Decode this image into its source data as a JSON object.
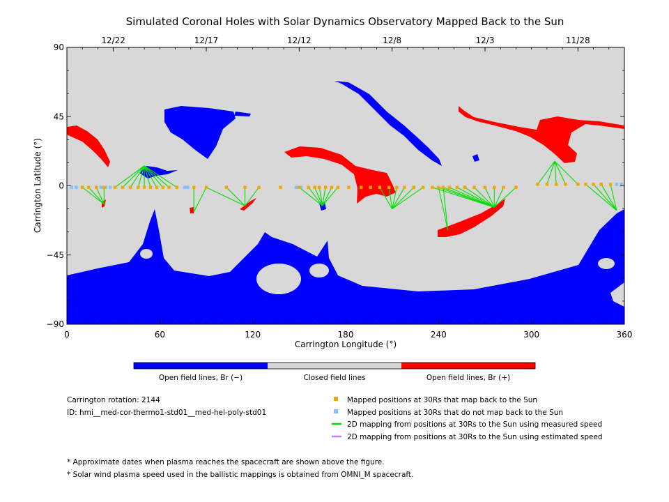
{
  "chart_data": {
    "type": "map",
    "title": "Simulated Coronal Holes with Solar Dynamics Observatory Mapped Back to the Sun",
    "xlabel": "Carrington Longitude (°)",
    "ylabel": "Carrington Latitude (°)",
    "xlim": [
      0,
      360
    ],
    "ylim": [
      -90,
      90
    ],
    "x_ticks": [
      0,
      60,
      120,
      180,
      240,
      300,
      360
    ],
    "y_ticks": [
      90,
      45,
      0,
      -45,
      -90
    ],
    "y_tick_labels": [
      "90",
      "45",
      "0",
      "−45",
      "−90"
    ],
    "top_dates": [
      {
        "lon": 30,
        "label": "12/22"
      },
      {
        "lon": 90,
        "label": "12/17"
      },
      {
        "lon": 150,
        "label": "12/12"
      },
      {
        "lon": 210,
        "label": "12/8"
      },
      {
        "lon": 270,
        "label": "12/3"
      },
      {
        "lon": 330,
        "label": "11/28"
      }
    ],
    "colors": {
      "open_negative": "#0000ff",
      "closed": "#d8d8d8",
      "open_positive": "#ff0000",
      "mapped": "#f0a800",
      "not_mapped": "#80c0ff",
      "measured_speed": "#00dd00",
      "estimated_speed": "#c080ff"
    },
    "colorbar_labels": [
      "Open field lines, Br (−)",
      "Closed field lines",
      "Open field lines, Br (+)"
    ],
    "mapped_points": [
      [
        10,
        -1
      ],
      [
        14,
        -1
      ],
      [
        19,
        -1
      ],
      [
        24,
        -1
      ],
      [
        31,
        -1
      ],
      [
        36,
        -1
      ],
      [
        41,
        -1
      ],
      [
        46,
        -1
      ],
      [
        50,
        -1
      ],
      [
        54,
        -1
      ],
      [
        58,
        -1
      ],
      [
        62,
        -1
      ],
      [
        66,
        -1
      ],
      [
        71,
        -1
      ],
      [
        82,
        -1
      ],
      [
        90,
        -1
      ],
      [
        103,
        -1
      ],
      [
        115,
        -1
      ],
      [
        124,
        -1
      ],
      [
        138,
        -1
      ],
      [
        150,
        -1
      ],
      [
        156,
        -1
      ],
      [
        160,
        -1
      ],
      [
        163,
        -1
      ],
      [
        167,
        -1
      ],
      [
        171,
        -1
      ],
      [
        175,
        -1
      ],
      [
        182,
        -1
      ],
      [
        190,
        -1
      ],
      [
        196,
        -1
      ],
      [
        202,
        -1
      ],
      [
        208,
        -1
      ],
      [
        213,
        -1
      ],
      [
        218,
        -1
      ],
      [
        224,
        -1
      ],
      [
        230,
        -1
      ],
      [
        236,
        -1
      ],
      [
        240,
        -1
      ],
      [
        243,
        -1
      ],
      [
        247,
        -1
      ],
      [
        252,
        -1
      ],
      [
        257,
        -1
      ],
      [
        263,
        -1
      ],
      [
        270,
        -1
      ],
      [
        276,
        -1
      ],
      [
        282,
        -1
      ],
      [
        290,
        -1
      ],
      [
        304,
        1
      ],
      [
        310,
        1
      ],
      [
        316,
        1
      ],
      [
        322,
        1
      ],
      [
        330,
        1
      ],
      [
        335,
        1
      ],
      [
        340,
        1
      ],
      [
        345,
        1
      ],
      [
        351,
        1
      ]
    ],
    "unmapped_points": [
      [
        3,
        -1
      ],
      [
        6,
        -1
      ],
      [
        22,
        -1
      ],
      [
        25,
        -1
      ],
      [
        28,
        -1
      ],
      [
        76,
        -1
      ],
      [
        78,
        -1
      ],
      [
        148,
        -1
      ],
      [
        151,
        -1
      ],
      [
        355,
        1
      ],
      [
        358,
        1
      ]
    ],
    "mapping_lines": [
      [
        [
          10,
          -1
        ],
        [
          24,
          -12
        ]
      ],
      [
        [
          14,
          -1
        ],
        [
          24,
          -12
        ]
      ],
      [
        [
          19,
          -1
        ],
        [
          24,
          -12
        ]
      ],
      [
        [
          24,
          -1
        ],
        [
          24,
          -12
        ]
      ],
      [
        [
          31,
          -1
        ],
        [
          50,
          13
        ]
      ],
      [
        [
          36,
          -1
        ],
        [
          50,
          13
        ]
      ],
      [
        [
          41,
          -1
        ],
        [
          50,
          13
        ]
      ],
      [
        [
          46,
          -1
        ],
        [
          50,
          13
        ]
      ],
      [
        [
          50,
          -1
        ],
        [
          50,
          13
        ]
      ],
      [
        [
          54,
          -1
        ],
        [
          50,
          13
        ]
      ],
      [
        [
          58,
          -1
        ],
        [
          50,
          13
        ]
      ],
      [
        [
          62,
          -1
        ],
        [
          50,
          13
        ]
      ],
      [
        [
          66,
          -1
        ],
        [
          50,
          13
        ]
      ],
      [
        [
          71,
          -1
        ],
        [
          50,
          13
        ]
      ],
      [
        [
          82,
          -1
        ],
        [
          82,
          -17
        ]
      ],
      [
        [
          90,
          -1
        ],
        [
          82,
          -17
        ]
      ],
      [
        [
          103,
          -1
        ],
        [
          115,
          -13
        ]
      ],
      [
        [
          115,
          -1
        ],
        [
          115,
          -13
        ]
      ],
      [
        [
          124,
          -1
        ],
        [
          115,
          -13
        ]
      ],
      [
        [
          90,
          -1
        ],
        [
          115,
          -13
        ]
      ],
      [
        [
          150,
          -1
        ],
        [
          165,
          -13
        ]
      ],
      [
        [
          156,
          -1
        ],
        [
          165,
          -13
        ]
      ],
      [
        [
          160,
          -1
        ],
        [
          165,
          -13
        ]
      ],
      [
        [
          163,
          -1
        ],
        [
          165,
          -13
        ]
      ],
      [
        [
          167,
          -1
        ],
        [
          165,
          -13
        ]
      ],
      [
        [
          171,
          -1
        ],
        [
          165,
          -13
        ]
      ],
      [
        [
          175,
          -1
        ],
        [
          165,
          -13
        ]
      ],
      [
        [
          202,
          -1
        ],
        [
          210,
          -15
        ]
      ],
      [
        [
          208,
          -1
        ],
        [
          210,
          -15
        ]
      ],
      [
        [
          213,
          -1
        ],
        [
          210,
          -15
        ]
      ],
      [
        [
          218,
          -1
        ],
        [
          210,
          -15
        ]
      ],
      [
        [
          224,
          -1
        ],
        [
          210,
          -15
        ]
      ],
      [
        [
          230,
          -1
        ],
        [
          210,
          -15
        ]
      ],
      [
        [
          236,
          -1
        ],
        [
          276,
          -14
        ]
      ],
      [
        [
          240,
          -1
        ],
        [
          276,
          -14
        ]
      ],
      [
        [
          243,
          -1
        ],
        [
          276,
          -14
        ]
      ],
      [
        [
          247,
          -1
        ],
        [
          276,
          -14
        ]
      ],
      [
        [
          252,
          -1
        ],
        [
          276,
          -14
        ]
      ],
      [
        [
          257,
          -1
        ],
        [
          276,
          -14
        ]
      ],
      [
        [
          263,
          -1
        ],
        [
          276,
          -14
        ]
      ],
      [
        [
          270,
          -1
        ],
        [
          276,
          -14
        ]
      ],
      [
        [
          276,
          -1
        ],
        [
          276,
          -14
        ]
      ],
      [
        [
          282,
          -1
        ],
        [
          276,
          -14
        ]
      ],
      [
        [
          290,
          -1
        ],
        [
          276,
          -14
        ]
      ],
      [
        [
          240,
          -1
        ],
        [
          246,
          -29
        ]
      ],
      [
        [
          243,
          -1
        ],
        [
          246,
          -29
        ]
      ],
      [
        [
          304,
          1
        ],
        [
          315,
          16
        ]
      ],
      [
        [
          310,
          1
        ],
        [
          315,
          16
        ]
      ],
      [
        [
          316,
          1
        ],
        [
          315,
          16
        ]
      ],
      [
        [
          322,
          1
        ],
        [
          315,
          16
        ]
      ],
      [
        [
          330,
          1
        ],
        [
          315,
          16
        ]
      ],
      [
        [
          335,
          1
        ],
        [
          355,
          -16
        ]
      ],
      [
        [
          340,
          1
        ],
        [
          355,
          -16
        ]
      ],
      [
        [
          345,
          1
        ],
        [
          355,
          -16
        ]
      ],
      [
        [
          351,
          1
        ],
        [
          355,
          -16
        ]
      ]
    ]
  },
  "info": {
    "rotation": "Carrington rotation: 2144",
    "id": "ID: hmi__med-cor-thermo1-std01__med-hel-poly-std01"
  },
  "legend": {
    "mapped": "Mapped positions at 30Rs that map back to the Sun",
    "unmapped": "Mapped positions at 30Rs that do not map back to the Sun",
    "measured": "2D mapping from positions at 30Rs to the Sun using measured speed",
    "estimated": "2D mapping from positions at 30Rs to the Sun using estimated speed"
  },
  "notes": [
    "* Approximate dates when plasma reaches the spacecraft are shown above the figure.",
    "* Solar wind plasma speed used in the ballistic mappings is obtained from OMNI_M spacecraft."
  ]
}
